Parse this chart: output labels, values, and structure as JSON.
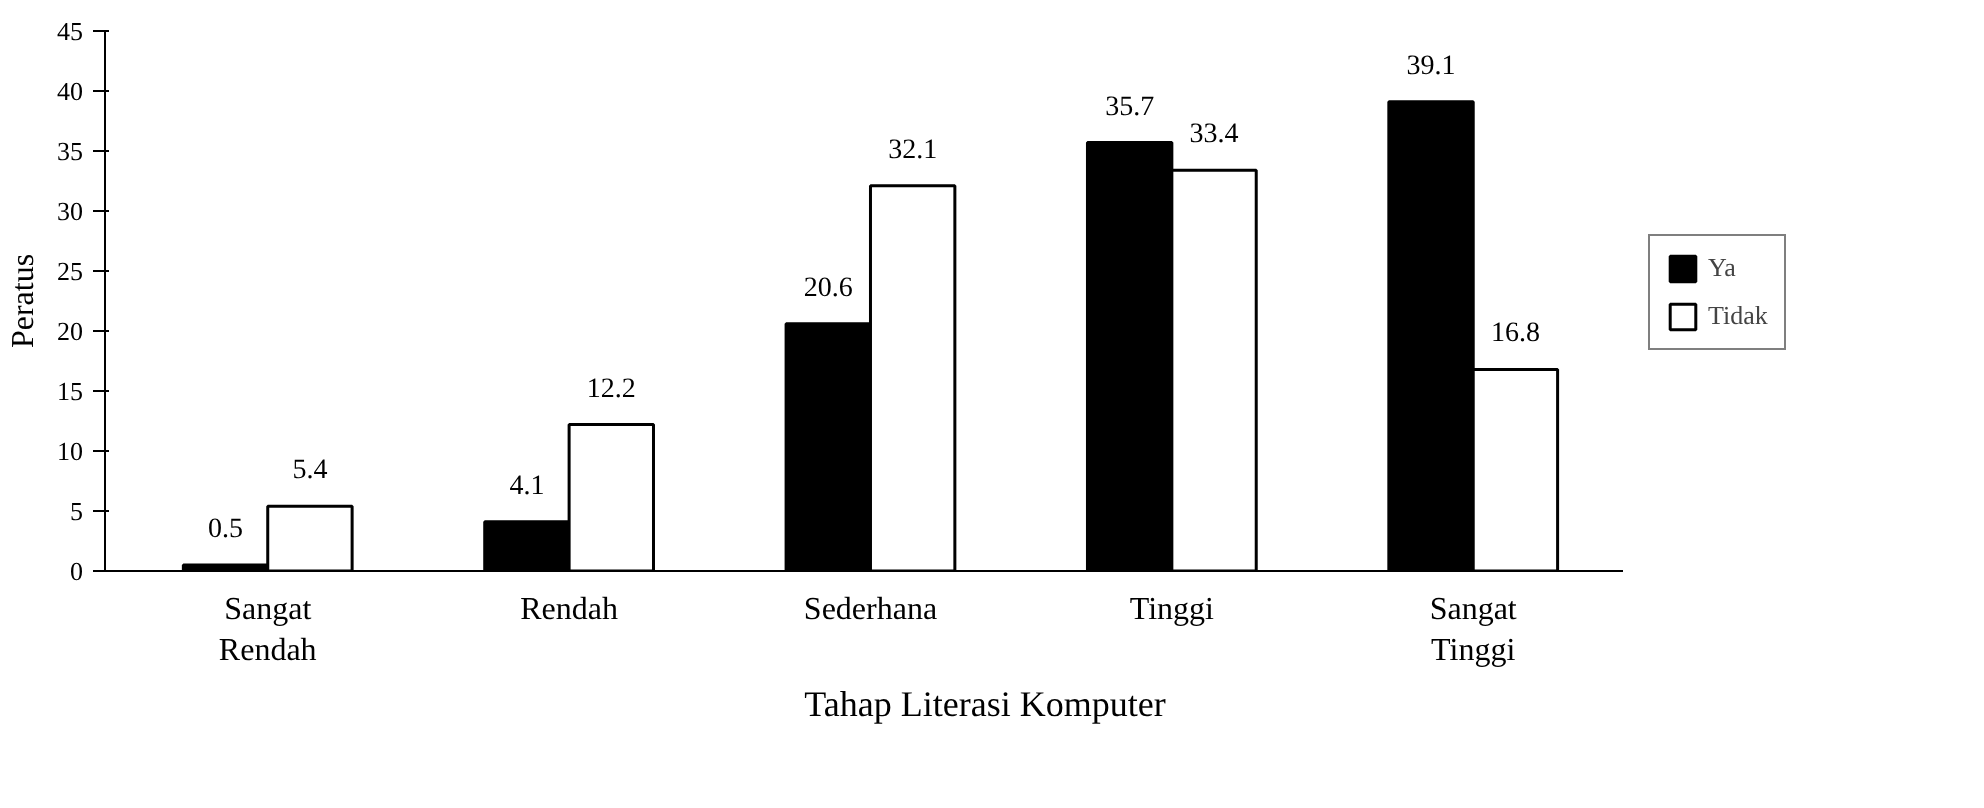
{
  "chart_data": {
    "type": "bar",
    "xlabel": "Tahap Literasi Komputer",
    "ylabel": "Peratus",
    "categories": [
      "Sangat Rendah",
      "Rendah",
      "Sederhana",
      "Tinggi",
      "Sangat Tinggi"
    ],
    "series": [
      {
        "name": "Ya",
        "color": "#000000",
        "values": [
          0.5,
          4.1,
          20.6,
          35.7,
          39.1
        ]
      },
      {
        "name": "Tidak",
        "color": "#ffffff",
        "values": [
          5.4,
          12.2,
          32.1,
          33.4,
          16.8
        ]
      }
    ],
    "ylim": [
      0,
      45
    ],
    "yticks": [
      0,
      5,
      10,
      15,
      20,
      25,
      30,
      35,
      40,
      45
    ],
    "grid": false,
    "legend": "right",
    "data_labels": true
  }
}
